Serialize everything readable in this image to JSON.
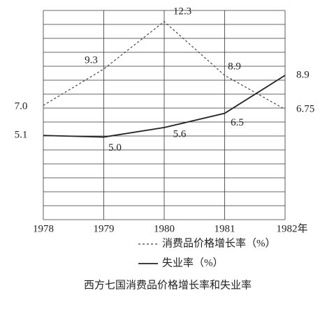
{
  "chart_data": {
    "type": "line",
    "title": "西方七国消费品价格增长率和失业率",
    "categories": [
      "1978",
      "1979",
      "1980",
      "1981",
      "1982年"
    ],
    "series": [
      {
        "name": "消费品价格增长率（%）",
        "color": "#444444",
        "dashed": true,
        "values": [
          7.0,
          9.3,
          12.3,
          8.9,
          6.75
        ],
        "value_labels": [
          "7.0",
          "9.3",
          "12.3",
          "8.9",
          "6.75"
        ]
      },
      {
        "name": "失业率（%）",
        "color": "#222222",
        "dashed": false,
        "values": [
          5.1,
          5.0,
          5.6,
          6.5,
          8.9
        ],
        "value_labels": [
          "5.1",
          "5.0",
          "5.6",
          "6.5",
          "8.9"
        ]
      }
    ],
    "ylim": [
      0,
      13
    ],
    "grid": true
  }
}
